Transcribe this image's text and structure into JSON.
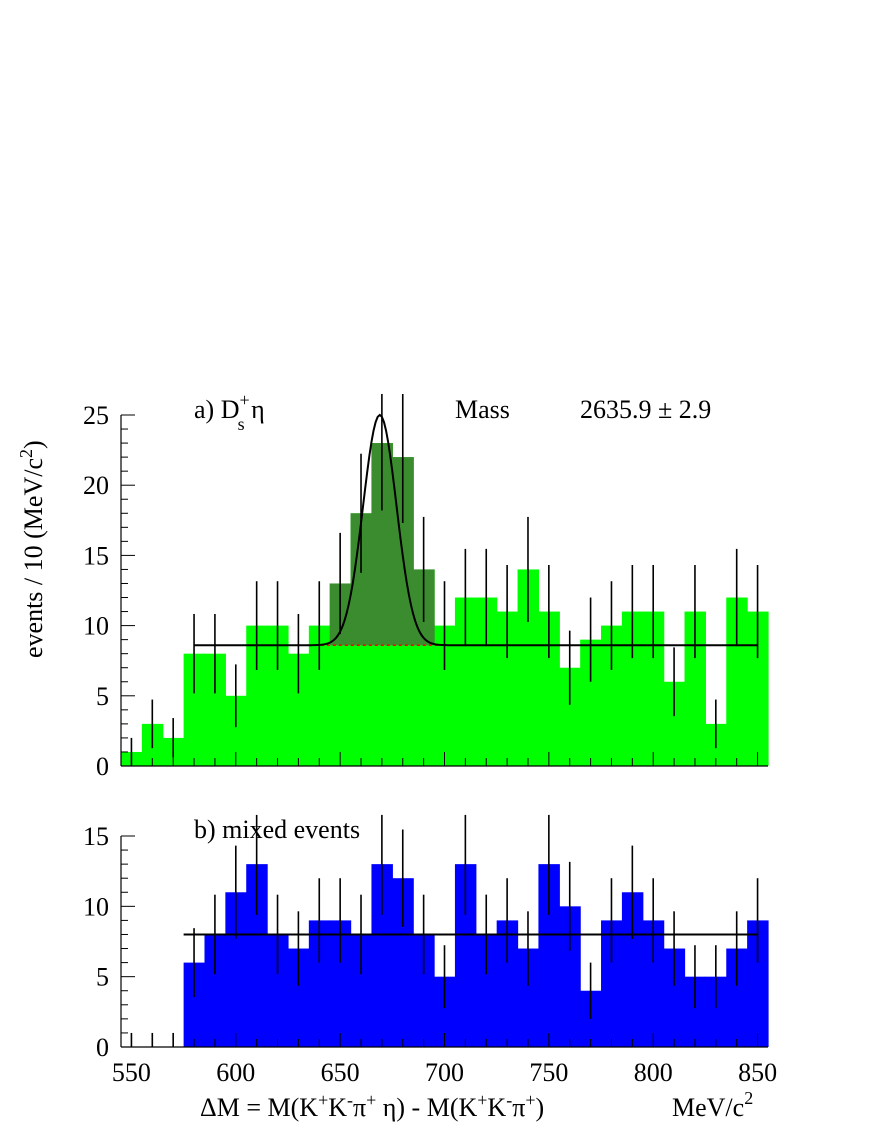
{
  "chart_data": [
    {
      "type": "bar",
      "panel": "a",
      "title": "a) D",
      "title_sup": "+",
      "title_sub": "s",
      "title_tail": " η",
      "annotation_label": "Mass",
      "annotation_value": "2635.9 ± 2.9",
      "ylabel": "events / 10 (MeV/c",
      "ylabel_sup": "2",
      "ylabel_tail": ")",
      "xlim": [
        545,
        855
      ],
      "ylim": [
        0,
        25
      ],
      "yticks": [
        0,
        5,
        10,
        15,
        20,
        25
      ],
      "ytick_labels": [
        "0",
        "5",
        "10",
        "15",
        "20",
        "25"
      ],
      "bin_edges": [
        545,
        555,
        565,
        575,
        585,
        595,
        605,
        615,
        625,
        635,
        645,
        655,
        665,
        675,
        685,
        695,
        705,
        715,
        725,
        735,
        745,
        755,
        765,
        775,
        785,
        795,
        805,
        815,
        825,
        835,
        845,
        855
      ],
      "values": [
        1,
        3,
        2,
        8,
        8,
        5,
        10,
        10,
        8,
        10,
        13,
        18,
        23,
        22,
        14,
        10,
        12,
        12,
        11,
        14,
        11,
        7,
        9,
        10,
        11,
        11,
        6,
        11,
        3,
        12,
        11
      ],
      "signal_bins": [
        10,
        11,
        12,
        13,
        14
      ],
      "background_level": 8.6,
      "signal_peak": 25,
      "signal_mean": 669,
      "signal_sigma": 8,
      "colors": {
        "histogram": "#00ff00",
        "signal": "#3a8c2e",
        "fit": "#000000",
        "background_line": "#ff0000"
      }
    },
    {
      "type": "bar",
      "panel": "b",
      "title": "b) mixed events",
      "xlabel": "ΔM =  M(K",
      "xlabel_parts": [
        "+",
        "K",
        "-",
        "π",
        "+",
        " η) - M(K",
        "+",
        "K",
        "-",
        "π",
        "+",
        ")"
      ],
      "xunit": "MeV/c",
      "xunit_sup": "2",
      "xlim": [
        545,
        855
      ],
      "ylim": [
        0,
        15
      ],
      "yticks": [
        0,
        5,
        10,
        15
      ],
      "ytick_labels": [
        "0",
        "5",
        "10",
        "15"
      ],
      "xticks": [
        550,
        600,
        650,
        700,
        750,
        800,
        850
      ],
      "xtick_labels": [
        "550",
        "600",
        "650",
        "700",
        "750",
        "800",
        "850"
      ],
      "bin_edges": [
        545,
        555,
        565,
        575,
        585,
        595,
        605,
        615,
        625,
        635,
        645,
        655,
        665,
        675,
        685,
        695,
        705,
        715,
        725,
        735,
        745,
        755,
        765,
        775,
        785,
        795,
        805,
        815,
        825,
        835,
        845,
        855
      ],
      "values": [
        0,
        0,
        0,
        6,
        8,
        11,
        13,
        8,
        7,
        9,
        9,
        8,
        13,
        12,
        8,
        5,
        13,
        8,
        9,
        7,
        13,
        10,
        4,
        9,
        11,
        9,
        7,
        5,
        5,
        7,
        9
      ],
      "fit_level": 8,
      "colors": {
        "histogram": "#0000ff",
        "fit": "#000000"
      }
    }
  ]
}
